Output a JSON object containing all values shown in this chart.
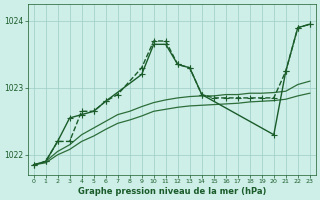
{
  "title": "Graphe pression niveau de la mer (hPa)",
  "bg_color": "#ceeee8",
  "grid_color": "#9ccec6",
  "line_color1": "#1a5c2a",
  "line_color2": "#2d6e3a",
  "xlim": [
    -0.5,
    23.5
  ],
  "ylim": [
    1021.7,
    1024.25
  ],
  "yticks": [
    1022,
    1023,
    1024
  ],
  "xticks": [
    0,
    1,
    2,
    3,
    4,
    5,
    6,
    7,
    8,
    9,
    10,
    11,
    12,
    13,
    14,
    15,
    16,
    17,
    18,
    19,
    20,
    21,
    22,
    23
  ],
  "series": [
    {
      "x": [
        0,
        1,
        2,
        3,
        4,
        5,
        6,
        7,
        9,
        10,
        11,
        12,
        13,
        14,
        15,
        16,
        17,
        18,
        19,
        20,
        21,
        22,
        23
      ],
      "y": [
        1021.85,
        1021.9,
        1022.2,
        1022.2,
        1022.65,
        1022.65,
        1022.8,
        1022.9,
        1023.3,
        1023.7,
        1023.7,
        1023.35,
        1023.3,
        1022.9,
        1022.85,
        1022.85,
        1022.85,
        1022.85,
        1022.85,
        1022.85,
        1023.25,
        1023.9,
        1023.95
      ],
      "style": "dashed",
      "marker": "+",
      "color": "#1a5c2a",
      "lw": 1.0,
      "ms": 4
    },
    {
      "x": [
        0,
        1,
        2,
        3,
        4,
        5,
        6,
        9,
        10,
        11,
        12,
        13,
        14,
        20,
        21,
        22,
        23
      ],
      "y": [
        1021.85,
        1021.9,
        1022.2,
        1022.55,
        1022.6,
        1022.65,
        1022.8,
        1023.2,
        1023.65,
        1023.65,
        1023.35,
        1023.3,
        1022.9,
        1022.3,
        1023.25,
        1023.9,
        1023.95
      ],
      "style": "solid",
      "marker": "+",
      "color": "#1a5c2a",
      "lw": 1.0,
      "ms": 4
    },
    {
      "x": [
        0,
        1,
        2,
        3,
        4,
        5,
        6,
        7,
        8,
        9,
        10,
        11,
        12,
        13,
        14,
        15,
        16,
        17,
        18,
        19,
        20,
        21,
        22,
        23
      ],
      "y": [
        1021.85,
        1021.9,
        1022.05,
        1022.15,
        1022.3,
        1022.4,
        1022.5,
        1022.6,
        1022.65,
        1022.72,
        1022.78,
        1022.82,
        1022.85,
        1022.87,
        1022.88,
        1022.88,
        1022.9,
        1022.9,
        1022.92,
        1022.92,
        1022.93,
        1022.95,
        1023.05,
        1023.1
      ],
      "style": "solid",
      "marker": null,
      "color": "#2d6e3a",
      "lw": 0.9,
      "ms": 0
    },
    {
      "x": [
        0,
        1,
        2,
        3,
        4,
        5,
        6,
        7,
        8,
        9,
        10,
        11,
        12,
        13,
        14,
        15,
        16,
        17,
        18,
        19,
        20,
        21,
        22,
        23
      ],
      "y": [
        1021.85,
        1021.88,
        1022.0,
        1022.08,
        1022.2,
        1022.28,
        1022.38,
        1022.47,
        1022.52,
        1022.58,
        1022.65,
        1022.68,
        1022.71,
        1022.73,
        1022.74,
        1022.75,
        1022.76,
        1022.77,
        1022.79,
        1022.8,
        1022.81,
        1022.83,
        1022.88,
        1022.92
      ],
      "style": "solid",
      "marker": null,
      "color": "#2d6e3a",
      "lw": 0.9,
      "ms": 0
    }
  ]
}
